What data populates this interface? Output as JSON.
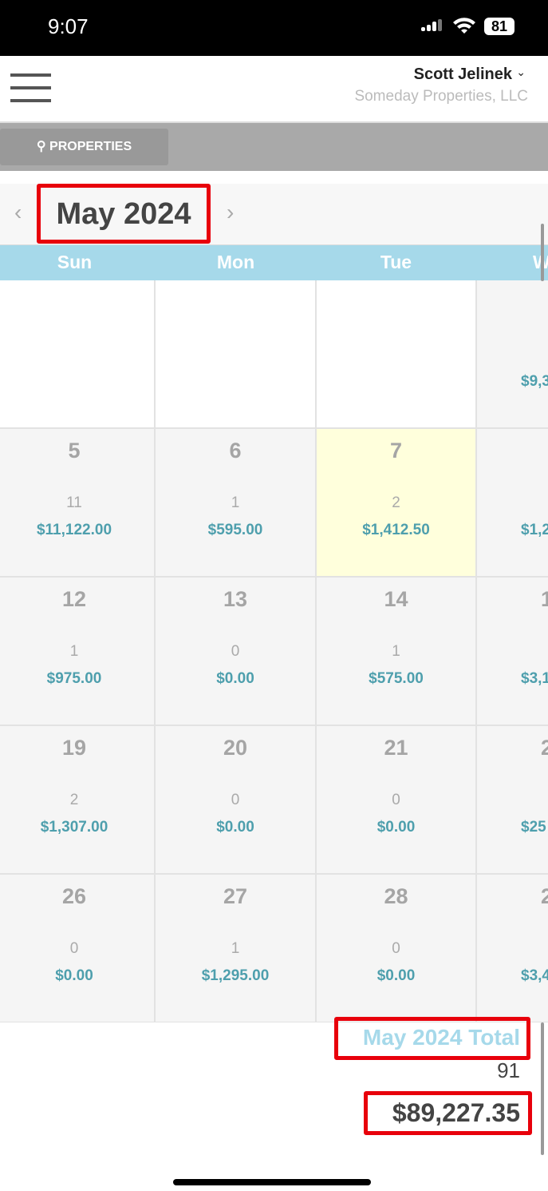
{
  "status_bar": {
    "time": "9:07",
    "battery": "81"
  },
  "header": {
    "user_name": "Scott Jelinek",
    "company": "Someday Properties, LLC"
  },
  "toolbar": {
    "properties_label": "PROPERTIES"
  },
  "calendar": {
    "month_label": "May 2024",
    "weekdays": [
      "Sun",
      "Mon",
      "Tue",
      "W"
    ],
    "weeks": [
      [
        {
          "day": "",
          "count": "",
          "amount": "",
          "style": "white"
        },
        {
          "day": "",
          "count": "",
          "amount": "",
          "style": "white"
        },
        {
          "day": "",
          "count": "",
          "amount": "",
          "style": "white"
        },
        {
          "day": "",
          "count": "",
          "amount": "$9,3"
        }
      ],
      [
        {
          "day": "5",
          "count": "11",
          "amount": "$11,122.00"
        },
        {
          "day": "6",
          "count": "1",
          "amount": "$595.00"
        },
        {
          "day": "7",
          "count": "2",
          "amount": "$1,412.50",
          "style": "today"
        },
        {
          "day": "",
          "count": "",
          "amount": "$1,2"
        }
      ],
      [
        {
          "day": "12",
          "count": "1",
          "amount": "$975.00"
        },
        {
          "day": "13",
          "count": "0",
          "amount": "$0.00"
        },
        {
          "day": "14",
          "count": "1",
          "amount": "$575.00"
        },
        {
          "day": "1",
          "count": "",
          "amount": "$3,1"
        }
      ],
      [
        {
          "day": "19",
          "count": "2",
          "amount": "$1,307.00"
        },
        {
          "day": "20",
          "count": "0",
          "amount": "$0.00"
        },
        {
          "day": "21",
          "count": "0",
          "amount": "$0.00"
        },
        {
          "day": "2",
          "count": "",
          "amount": "$25"
        }
      ],
      [
        {
          "day": "26",
          "count": "0",
          "amount": "$0.00"
        },
        {
          "day": "27",
          "count": "1",
          "amount": "$1,295.00"
        },
        {
          "day": "28",
          "count": "0",
          "amount": "$0.00"
        },
        {
          "day": "2",
          "count": "",
          "amount": "$3,4"
        }
      ]
    ]
  },
  "totals": {
    "label": "May 2024 Total",
    "count": "91",
    "amount": "$89,227.35"
  },
  "colors": {
    "accent": "#a6d9ea",
    "amount": "#4e9fad",
    "today": "#ffffdc",
    "highlight_box": "#e8000b"
  }
}
